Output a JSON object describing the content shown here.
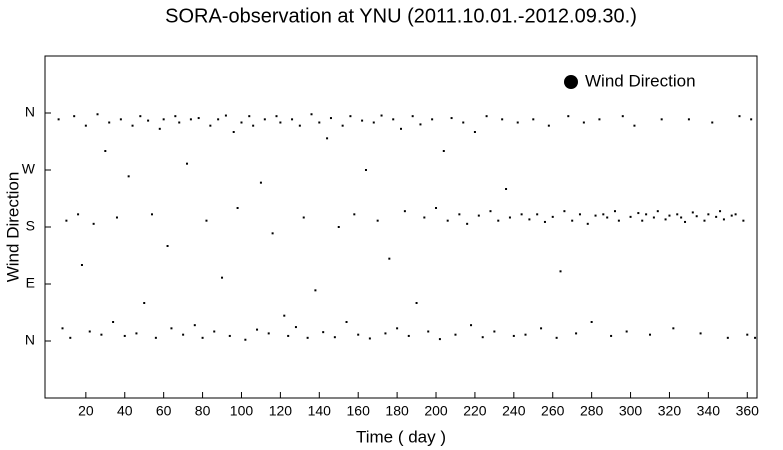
{
  "chart_data": {
    "type": "scatter",
    "title": "SORA-observation at YNU (2011.10.01.-2012.09.30.)",
    "x_label": "Time ( day )",
    "y_label": "Wind Direction",
    "xlim": [
      -1,
      365
    ],
    "xticks": [
      20,
      40,
      60,
      80,
      100,
      120,
      140,
      160,
      180,
      200,
      220,
      240,
      260,
      280,
      300,
      320,
      340,
      360
    ],
    "ylim": [
      -90,
      450
    ],
    "yticks": [
      {
        "value": 0,
        "label": "N"
      },
      {
        "value": 90,
        "label": "E"
      },
      {
        "value": 180,
        "label": "S"
      },
      {
        "value": 270,
        "label": "W"
      },
      {
        "value": 360,
        "label": "N"
      }
    ],
    "legend": "top-right",
    "series": [
      {
        "name": "Wind Direction",
        "color": "#000000",
        "x": [
          6,
          8,
          10,
          12,
          14,
          16,
          18,
          20,
          22,
          24,
          26,
          28,
          30,
          32,
          34,
          36,
          38,
          40,
          42,
          44,
          46,
          48,
          50,
          52,
          54,
          56,
          58,
          60,
          62,
          64,
          66,
          68,
          70,
          72,
          74,
          76,
          78,
          80,
          82,
          84,
          86,
          88,
          90,
          92,
          94,
          96,
          98,
          100,
          102,
          104,
          106,
          108,
          110,
          112,
          114,
          116,
          118,
          120,
          122,
          124,
          126,
          128,
          130,
          132,
          134,
          136,
          138,
          140,
          142,
          144,
          146,
          148,
          150,
          152,
          154,
          156,
          158,
          160,
          162,
          164,
          166,
          168,
          170,
          172,
          174,
          176,
          178,
          180,
          182,
          184,
          186,
          188,
          190,
          192,
          194,
          196,
          198,
          200,
          202,
          204,
          206,
          208,
          210,
          212,
          214,
          216,
          218,
          220,
          222,
          224,
          226,
          228,
          230,
          232,
          234,
          236,
          238,
          240,
          242,
          244,
          246,
          248,
          250,
          252,
          254,
          256,
          258,
          260,
          262,
          264,
          266,
          268,
          270,
          272,
          274,
          276,
          278,
          280,
          282,
          284,
          286,
          288,
          290,
          292,
          294,
          296,
          298,
          300,
          302,
          304,
          306,
          308,
          310,
          312,
          314,
          316,
          318,
          320,
          322,
          324,
          326,
          328,
          330,
          332,
          334,
          336,
          338,
          340,
          342,
          344,
          346,
          348,
          350,
          352,
          354,
          356,
          358,
          360,
          362,
          364
        ],
        "values": [
          350,
          20,
          190,
          5,
          355,
          200,
          120,
          340,
          15,
          185,
          358,
          10,
          300,
          345,
          30,
          195,
          350,
          8,
          260,
          340,
          12,
          355,
          60,
          348,
          200,
          5,
          335,
          350,
          150,
          20,
          355,
          345,
          10,
          280,
          350,
          25,
          352,
          5,
          190,
          340,
          15,
          350,
          100,
          356,
          8,
          330,
          210,
          345,
          2,
          355,
          340,
          18,
          250,
          350,
          12,
          170,
          355,
          345,
          40,
          8,
          350,
          22,
          340,
          195,
          5,
          358,
          80,
          345,
          14,
          320,
          352,
          6,
          180,
          340,
          30,
          355,
          200,
          10,
          348,
          270,
          4,
          345,
          190,
          356,
          12,
          130,
          350,
          20,
          335,
          205,
          8,
          355,
          60,
          342,
          195,
          15,
          350,
          210,
          3,
          300,
          190,
          352,
          10,
          200,
          345,
          185,
          25,
          330,
          198,
          6,
          355,
          205,
          15,
          190,
          350,
          240,
          195,
          8,
          345,
          200,
          10,
          192,
          350,
          200,
          20,
          188,
          340,
          196,
          5,
          110,
          205,
          355,
          190,
          12,
          200,
          345,
          185,
          30,
          198,
          350,
          200,
          195,
          8,
          205,
          190,
          355,
          15,
          196,
          340,
          202,
          190,
          200,
          10,
          195,
          205,
          350,
          192,
          198,
          20,
          200,
          195,
          188,
          350,
          203,
          197,
          12,
          190,
          200,
          345,
          196,
          205,
          192,
          5,
          198,
          200,
          355,
          190,
          10,
          350,
          5
        ]
      }
    ]
  }
}
